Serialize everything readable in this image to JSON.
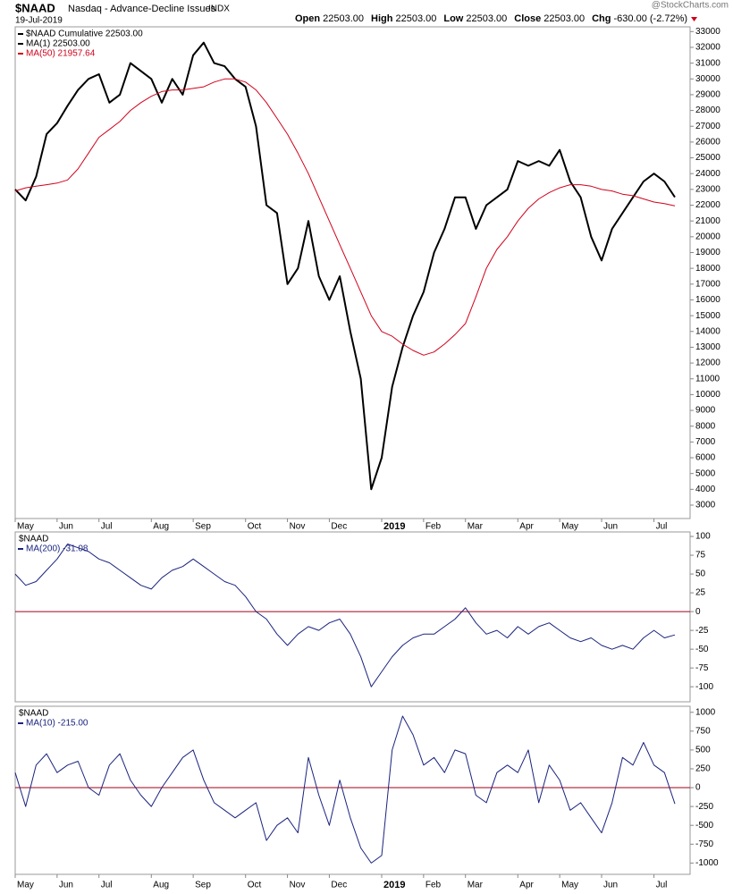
{
  "chart_data": [
    {
      "type": "line",
      "title": "$NAAD",
      "subtitle": "Nasdaq - Advance-Decline Issues",
      "exchange": "INDX",
      "date": "19-Jul-2019",
      "source": "@StockCharts.com",
      "quote": [
        {
          "label": "Open",
          "value": "22503.00"
        },
        {
          "label": "High",
          "value": "22503.00"
        },
        {
          "label": "Low",
          "value": "22503.00"
        },
        {
          "label": "Close",
          "value": "22503.00"
        },
        {
          "label": "Chg",
          "value": "-630.00 (-2.72%)"
        }
      ],
      "annotations": [
        {
          "text": "MA(1) 22503.00",
          "color": "#000000"
        }
      ],
      "categories": [
        "May",
        null,
        null,
        null,
        "Jun",
        null,
        null,
        null,
        "Jul",
        null,
        null,
        null,
        null,
        "Aug",
        null,
        null,
        null,
        "Sep",
        null,
        null,
        null,
        null,
        "Oct",
        null,
        null,
        null,
        "Nov",
        null,
        null,
        null,
        "Dec",
        null,
        null,
        null,
        null,
        "2019",
        null,
        null,
        null,
        "Feb",
        null,
        null,
        null,
        "Mar",
        null,
        null,
        null,
        null,
        "Apr",
        null,
        null,
        null,
        "May",
        null,
        null,
        null,
        "Jun",
        null,
        null,
        null,
        null,
        "Jul",
        null,
        null
      ],
      "series": [
        {
          "name": "$NAAD Cumulative 22503.00",
          "color": "#000000",
          "values": [
            23000,
            22300,
            23800,
            26500,
            27200,
            28300,
            29300,
            30000,
            30300,
            28500,
            29000,
            31000,
            30500,
            30000,
            28500,
            30000,
            29000,
            31500,
            32300,
            31000,
            30800,
            30000,
            29500,
            27000,
            22000,
            21500,
            17000,
            18000,
            21000,
            17500,
            16000,
            17500,
            14000,
            11000,
            4000,
            6000,
            10500,
            13000,
            15000,
            16500,
            19000,
            20500,
            22500,
            22500,
            20500,
            22000,
            22500,
            23000,
            24800,
            24500,
            24800,
            24500,
            25500,
            23500,
            22500,
            20000,
            18500,
            20500,
            21500,
            22500,
            23500,
            24000,
            23500,
            22503
          ]
        },
        {
          "name": "MA(50) 21957.64",
          "color": "#d0021b",
          "values": [
            22900,
            23100,
            23200,
            23300,
            23400,
            23600,
            24300,
            25300,
            26300,
            26800,
            27300,
            28000,
            28500,
            28900,
            29200,
            29300,
            29300,
            29400,
            29500,
            29800,
            30000,
            30000,
            29800,
            29300,
            28500,
            27500,
            26500,
            25300,
            24000,
            22500,
            21000,
            19500,
            18000,
            16500,
            15000,
            14000,
            13700,
            13200,
            12800,
            12500,
            12700,
            13200,
            13800,
            14500,
            16200,
            18000,
            19200,
            20000,
            21000,
            21800,
            22400,
            22800,
            23100,
            23300,
            23300,
            23200,
            23000,
            22900,
            22700,
            22600,
            22400,
            22200,
            22100,
            21958
          ]
        }
      ],
      "ylim": [
        2150,
        33300
      ],
      "yticks": [
        3000,
        4000,
        5000,
        6000,
        7000,
        8000,
        9000,
        10000,
        11000,
        12000,
        13000,
        14000,
        15000,
        16000,
        17000,
        18000,
        19000,
        20000,
        21000,
        22000,
        23000,
        24000,
        25000,
        26000,
        27000,
        28000,
        29000,
        30000,
        31000,
        32000,
        33000
      ]
    },
    {
      "type": "line",
      "title": "$NAAD",
      "categories": [
        null,
        null,
        null,
        null,
        null,
        null,
        null,
        null,
        null,
        null,
        null,
        null,
        null,
        null,
        null,
        null,
        null,
        null,
        null,
        null,
        null,
        null,
        null,
        null,
        null,
        null,
        null,
        null,
        null,
        null,
        null,
        null,
        null,
        null,
        null,
        null,
        null,
        null,
        null,
        null,
        null,
        null,
        null,
        null,
        null,
        null,
        null,
        null,
        null,
        null,
        null,
        null,
        null,
        null,
        null,
        null,
        null,
        null,
        null,
        null,
        null,
        null,
        null,
        null
      ],
      "series": [
        {
          "name": "MA(200) -31.08",
          "color": "#1a237e",
          "values": [
            50,
            35,
            40,
            55,
            70,
            90,
            85,
            80,
            70,
            65,
            55,
            45,
            35,
            30,
            45,
            55,
            60,
            70,
            60,
            50,
            40,
            35,
            20,
            0,
            -10,
            -30,
            -45,
            -30,
            -20,
            -25,
            -15,
            -10,
            -30,
            -60,
            -100,
            -80,
            -60,
            -45,
            -35,
            -30,
            -30,
            -20,
            -10,
            5,
            -15,
            -30,
            -25,
            -35,
            -20,
            -30,
            -20,
            -15,
            -25,
            -35,
            -40,
            -35,
            -45,
            -50,
            -45,
            -50,
            -35,
            -25,
            -35,
            -31.08
          ]
        }
      ],
      "hline": {
        "value": 0,
        "color": "#a0001a"
      },
      "ylim": [
        -120,
        106
      ],
      "yticks": [
        -100,
        -75,
        -50,
        -25,
        0,
        25,
        50,
        75,
        100
      ]
    },
    {
      "type": "line",
      "title": "$NAAD",
      "categories": [
        "May",
        null,
        null,
        null,
        "Jun",
        null,
        null,
        null,
        "Jul",
        null,
        null,
        null,
        null,
        "Aug",
        null,
        null,
        null,
        "Sep",
        null,
        null,
        null,
        null,
        "Oct",
        null,
        null,
        null,
        "Nov",
        null,
        null,
        null,
        "Dec",
        null,
        null,
        null,
        null,
        "2019",
        null,
        null,
        null,
        "Feb",
        null,
        null,
        null,
        "Mar",
        null,
        null,
        null,
        null,
        "Apr",
        null,
        null,
        null,
        "May",
        null,
        null,
        null,
        "Jun",
        null,
        null,
        null,
        null,
        "Jul",
        null,
        null
      ],
      "series": [
        {
          "name": "MA(10) -215.00",
          "color": "#1a237e",
          "values": [
            200,
            -250,
            300,
            450,
            200,
            300,
            350,
            0,
            -100,
            300,
            450,
            100,
            -100,
            -250,
            0,
            200,
            400,
            500,
            100,
            -200,
            -300,
            -400,
            -300,
            -200,
            -700,
            -500,
            -400,
            -600,
            400,
            -100,
            -500,
            100,
            -400,
            -800,
            -1000,
            -900,
            500,
            950,
            700,
            300,
            400,
            200,
            500,
            450,
            -100,
            -200,
            200,
            300,
            200,
            500,
            -200,
            300,
            100,
            -300,
            -200,
            -400,
            -600,
            -200,
            400,
            300,
            600,
            300,
            200,
            -215
          ]
        }
      ],
      "hline": {
        "value": 0,
        "color": "#a0001a"
      },
      "ylim": [
        -1150,
        1080
      ],
      "yticks": [
        -1000,
        -750,
        -500,
        -250,
        0,
        250,
        500,
        750,
        1000
      ]
    }
  ]
}
